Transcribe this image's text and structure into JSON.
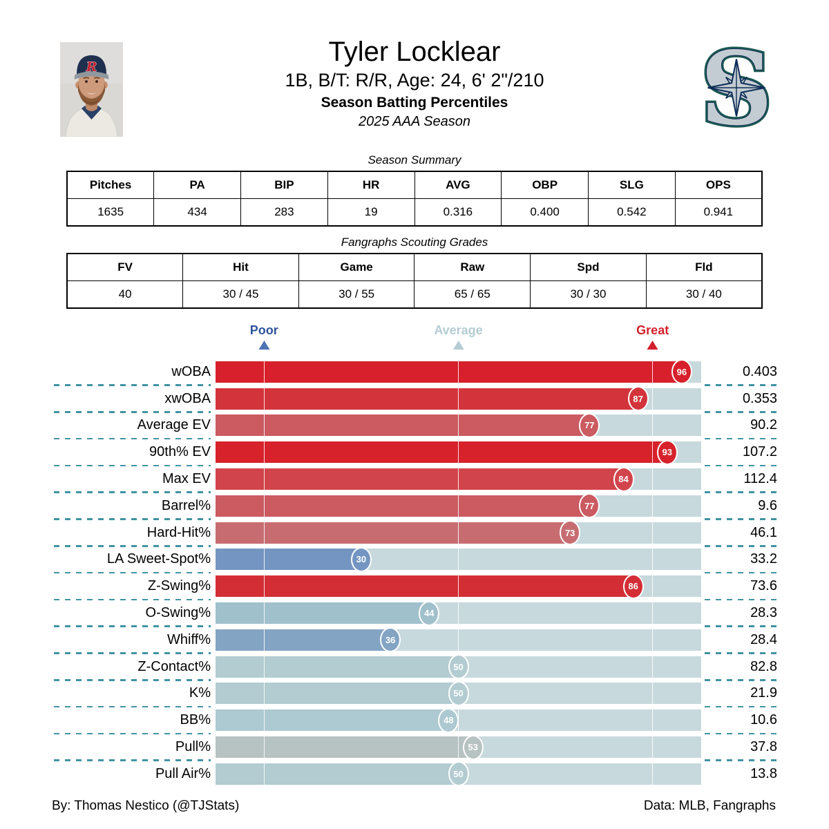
{
  "header": {
    "title": "Tyler Locklear",
    "subtitle": "1B, B/T: R/R, Age: 24, 6' 2\"/210",
    "line3": "Season Batting Percentiles",
    "line4": "2025 AAA Season"
  },
  "season_summary": {
    "title": "Season Summary",
    "columns": [
      "Pitches",
      "PA",
      "BIP",
      "HR",
      "AVG",
      "OBP",
      "SLG",
      "OPS"
    ],
    "values": [
      "1635",
      "434",
      "283",
      "19",
      "0.316",
      "0.400",
      "0.542",
      "0.941"
    ]
  },
  "scouting_grades": {
    "title": "Fangraphs Scouting Grades",
    "columns": [
      "FV",
      "Hit",
      "Game",
      "Raw",
      "Spd",
      "Fld"
    ],
    "values": [
      "40",
      "30 / 45",
      "30 / 55",
      "65 / 65",
      "30 / 30",
      "30 / 40"
    ]
  },
  "chart_data": {
    "type": "bar",
    "title": "Season Batting Percentiles",
    "xlabel": "Percentile",
    "xlim": [
      0,
      100
    ],
    "axis_markers": [
      {
        "label": "Poor",
        "percentile": 10,
        "color": "#2f549b",
        "triangle_color": "#4d74b5"
      },
      {
        "label": "Average",
        "percentile": 50,
        "color": "#b5ccd4",
        "triangle_color": "#b5ccd4"
      },
      {
        "label": "Great",
        "percentile": 90,
        "color": "#d41f2c",
        "triangle_color": "#d41f2c"
      }
    ],
    "rows": [
      {
        "label": "wOBA",
        "percentile": 96,
        "value": "0.403",
        "color": "#d7202b"
      },
      {
        "label": "xwOBA",
        "percentile": 87,
        "value": "0.353",
        "color": "#d3343b"
      },
      {
        "label": "Average EV",
        "percentile": 77,
        "value": "90.2",
        "color": "#cb5a61"
      },
      {
        "label": "90th% EV",
        "percentile": 93,
        "value": "107.2",
        "color": "#d7222c"
      },
      {
        "label": "Max EV",
        "percentile": 84,
        "value": "112.4",
        "color": "#d2444b"
      },
      {
        "label": "Barrel%",
        "percentile": 77,
        "value": "9.6",
        "color": "#cb5a61"
      },
      {
        "label": "Hard-Hit%",
        "percentile": 73,
        "value": "46.1",
        "color": "#c76d72"
      },
      {
        "label": "LA Sweet-Spot%",
        "percentile": 30,
        "value": "33.2",
        "color": "#7495c1"
      },
      {
        "label": "Z-Swing%",
        "percentile": 86,
        "value": "73.6",
        "color": "#d32e36"
      },
      {
        "label": "O-Swing%",
        "percentile": 44,
        "value": "28.3",
        "color": "#a0c0cc"
      },
      {
        "label": "Whiff%",
        "percentile": 36,
        "value": "28.4",
        "color": "#84a4c4"
      },
      {
        "label": "Z-Contact%",
        "percentile": 50,
        "value": "82.8",
        "color": "#b2ccd1"
      },
      {
        "label": "K%",
        "percentile": 50,
        "value": "21.9",
        "color": "#b2ccd1"
      },
      {
        "label": "BB%",
        "percentile": 48,
        "value": "10.6",
        "color": "#adc9d1"
      },
      {
        "label": "Pull%",
        "percentile": 53,
        "value": "37.8",
        "color": "#b7c2c2"
      },
      {
        "label": "Pull Air%",
        "percentile": 50,
        "value": "13.8",
        "color": "#b2ccd1"
      }
    ],
    "style": {
      "track_color": "#c7d9dd",
      "dash_color": "#4193a3",
      "gridline_percentiles": [
        10,
        50,
        90
      ]
    }
  },
  "footer": {
    "left": "By: Thomas Nestico (@TJStats)",
    "right": "Data: MLB, Fangraphs"
  }
}
